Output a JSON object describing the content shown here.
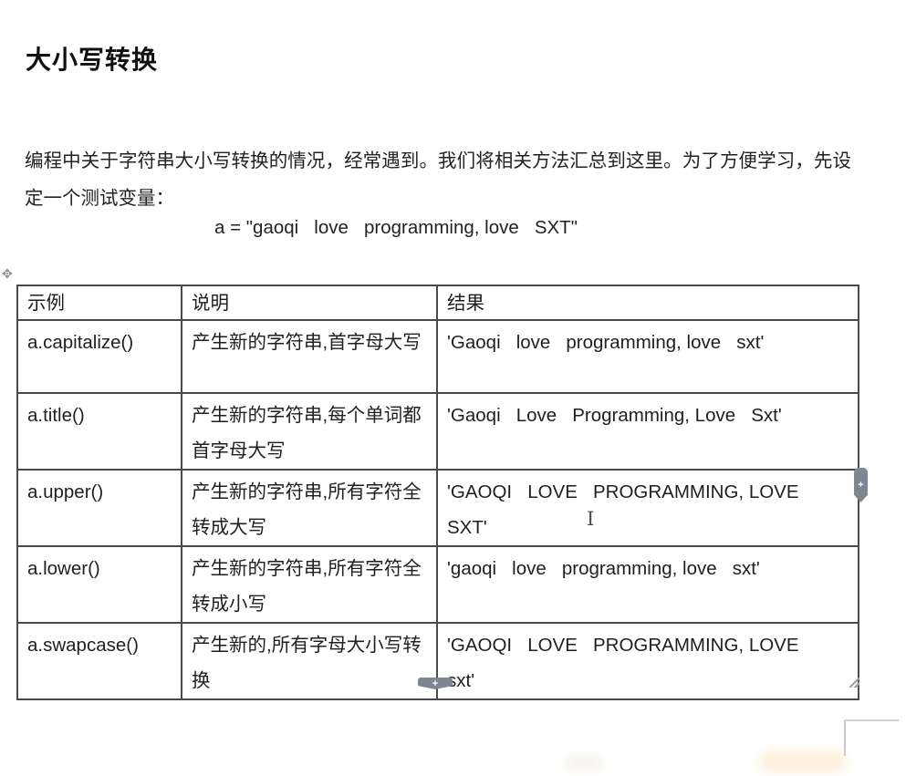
{
  "page": {
    "title": "大小写转换",
    "intro": "编程中关于字符串大小写转换的情况，经常遇到。我们将相关方法汇总到这里。为了方便学习，先设定一个测试变量：",
    "code_line": "a = \"gaoqi   love   programming, love   SXT\""
  },
  "table": {
    "headers": [
      "示例",
      "说明",
      "结果"
    ],
    "rows": [
      {
        "example": "a.capitalize()",
        "description": "产生新的字符串,首字母大写",
        "result": "'Gaoqi   love   programming, love   sxt'"
      },
      {
        "example": "a.title()",
        "description": "产生新的字符串,每个单词都首字母大写",
        "result": "'Gaoqi   Love   Programming, Love   Sxt'"
      },
      {
        "example": "a.upper()",
        "description": "产生新的字符串,所有字符全转成大写",
        "result": "'GAOQI   LOVE   PROGRAMMING, LOVE\nSXT'"
      },
      {
        "example": "a.lower()",
        "description": "产生新的字符串,所有字符全转成小写",
        "result": "'gaoqi   love   programming, love   sxt'"
      },
      {
        "example": "a.swapcase()",
        "description": "产生新的,所有字母大小写转换",
        "result": "'GAOQI   LOVE   PROGRAMMING, LOVE\nsxt'"
      }
    ]
  },
  "widgets": {
    "table_move_icon": "✥",
    "side_handle_icon": "✚",
    "insert_row_icon": "✚",
    "text_cursor_icon": "I"
  },
  "colors": {
    "table_border": "#4a4a4a",
    "handle_gray": "#7d8791",
    "text": "#1c1c1c"
  }
}
